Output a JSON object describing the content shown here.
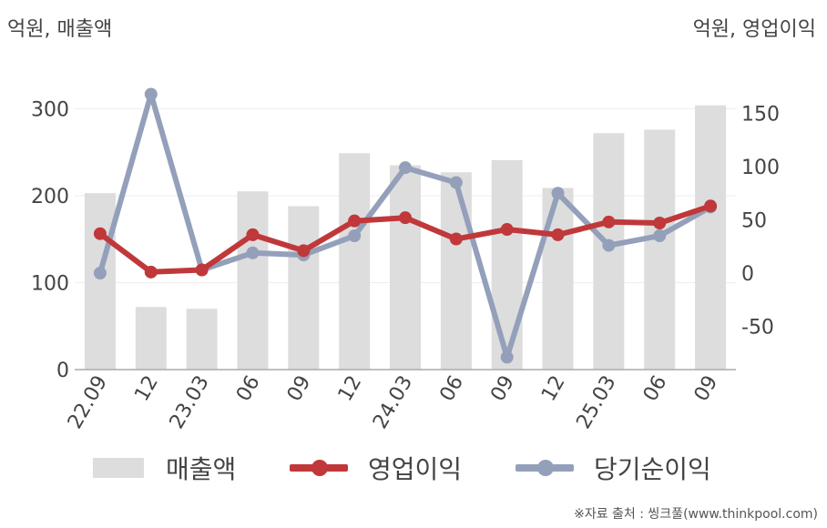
{
  "left_unit": "억원, 매출액",
  "right_unit": "억원, 영업이익",
  "source": "※자료 출처 : 씽크풀(www.thinkpool.com)",
  "colors": {
    "sales": "#dddddd",
    "operating": "#c0383a",
    "net": "#94a0ba",
    "axis": "#aaaaaa",
    "grid": "#eeeeee"
  },
  "chart_data": {
    "type": "bar",
    "title": "",
    "categories": [
      "22.09",
      "12",
      "23.03",
      "06",
      "09",
      "12",
      "24.03",
      "06",
      "09",
      "12",
      "25.03",
      "06",
      "09"
    ],
    "y_left": {
      "ylim": [
        0,
        350
      ],
      "ticks": [
        0,
        100,
        200,
        300
      ]
    },
    "y_right": {
      "ylim": [
        -100,
        175
      ],
      "ticks": [
        -50,
        0,
        50,
        100,
        150
      ]
    },
    "series": [
      {
        "name": "매출액",
        "type": "bar",
        "axis": "left",
        "values": [
          203,
          72,
          70,
          205,
          188,
          249,
          235,
          227,
          241,
          209,
          272,
          276,
          304
        ]
      },
      {
        "name": "영업이익",
        "type": "line",
        "axis": "right",
        "values": [
          37,
          1,
          3,
          36,
          21,
          49,
          52,
          32,
          41,
          36,
          48,
          47,
          63
        ]
      },
      {
        "name": "당기순이익",
        "type": "line",
        "axis": "right",
        "values": [
          0,
          168,
          3,
          19,
          17,
          35,
          99,
          85,
          -79,
          75,
          26,
          35,
          62
        ]
      }
    ],
    "legend": "bottom"
  }
}
